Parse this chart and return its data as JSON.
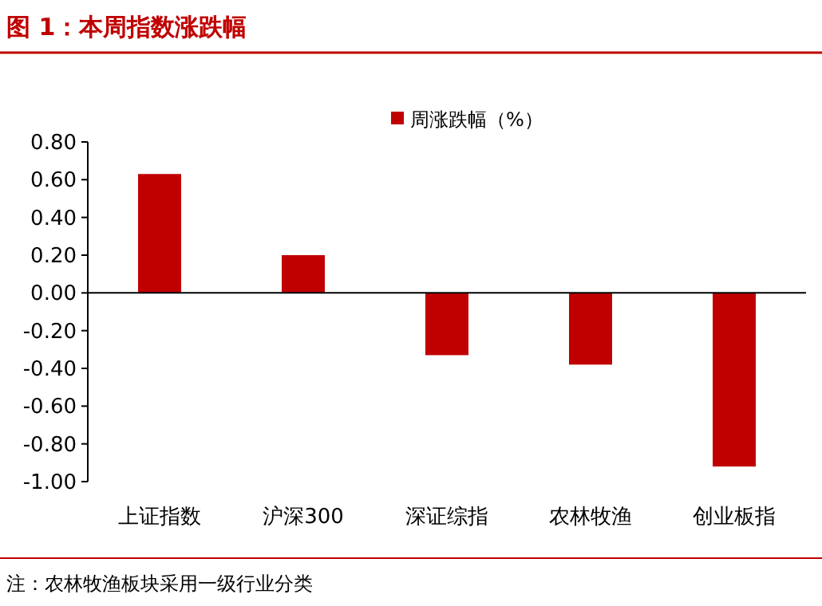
{
  "chart_data": {
    "type": "bar",
    "title": "图 1：本周指数涨跌幅",
    "categories": [
      "上证指数",
      "沪深300",
      "深证综指",
      "农林牧渔",
      "创业板指"
    ],
    "series": [
      {
        "name": "周涨跌幅（%）",
        "color": "#c00000",
        "values": [
          0.63,
          0.2,
          -0.33,
          -0.38,
          -0.92
        ]
      }
    ],
    "ylim": [
      -1.0,
      0.8
    ],
    "yticks": [
      {
        "value": 0.8,
        "label": "0.80"
      },
      {
        "value": 0.6,
        "label": "0.60"
      },
      {
        "value": 0.4,
        "label": "0.40"
      },
      {
        "value": 0.2,
        "label": "0.20"
      },
      {
        "value": 0,
        "label": "0.00"
      },
      {
        "value": -0.2,
        "label": "-0.20"
      },
      {
        "value": -0.4,
        "label": "-0.40"
      },
      {
        "value": -0.6,
        "label": "-0.60"
      },
      {
        "value": -0.8,
        "label": "-0.80"
      },
      {
        "value": -1.0,
        "label": "-1.00"
      }
    ],
    "legend": "top",
    "annotations": [
      "注：农林牧渔板块采用一级行业分类"
    ]
  }
}
